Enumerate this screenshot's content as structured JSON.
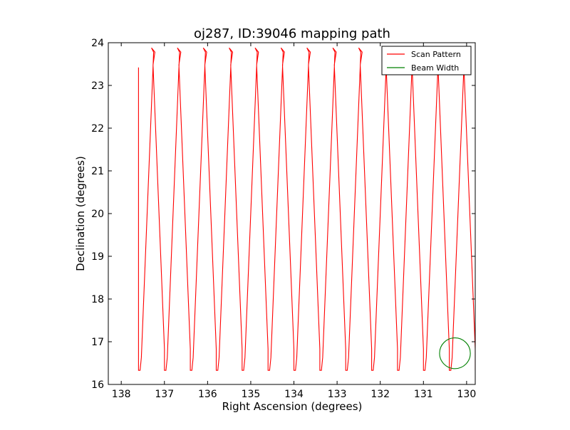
{
  "chart_data": {
    "type": "line",
    "title": "oj287, ID:39046 mapping path",
    "xlabel": "Right Ascension (degrees)",
    "ylabel": "Declination (degrees)",
    "xlim": [
      138.3,
      129.8
    ],
    "ylim": [
      16,
      24
    ],
    "x_inverted": true,
    "xticks": [
      138,
      137,
      136,
      135,
      134,
      133,
      132,
      131,
      130
    ],
    "yticks": [
      16,
      17,
      18,
      19,
      20,
      21,
      22,
      23,
      24
    ],
    "grid": false,
    "legend_position": "top-right",
    "scan": {
      "start_ra": 137.6,
      "step_ra": 0.3,
      "columns": 26,
      "dec_low": 16.33,
      "dec_high": 23.88,
      "start_dec": 23.42
    },
    "series": [
      {
        "name": "Scan Pattern",
        "color": "#ff0000"
      },
      {
        "name": "Beam Width",
        "color": "#008000",
        "center": [
          130.27,
          16.73
        ],
        "radius_deg": 0.36
      }
    ]
  }
}
